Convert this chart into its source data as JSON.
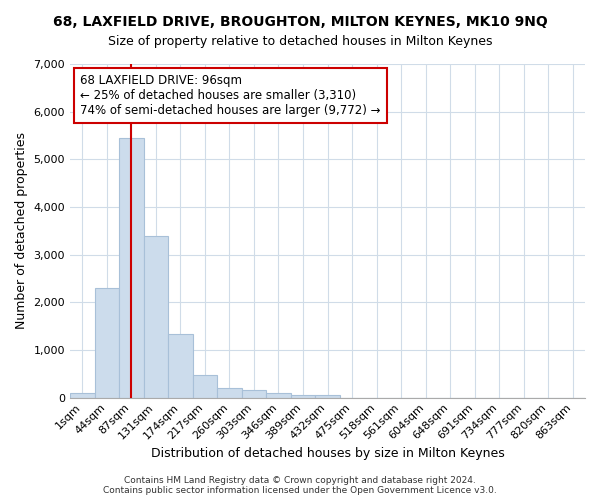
{
  "title_line1": "68, LAXFIELD DRIVE, BROUGHTON, MILTON KEYNES, MK10 9NQ",
  "title_line2": "Size of property relative to detached houses in Milton Keynes",
  "xlabel": "Distribution of detached houses by size in Milton Keynes",
  "ylabel": "Number of detached properties",
  "footnote": "Contains HM Land Registry data © Crown copyright and database right 2024.\nContains public sector information licensed under the Open Government Licence v3.0.",
  "bar_labels": [
    "1sqm",
    "44sqm",
    "87sqm",
    "131sqm",
    "174sqm",
    "217sqm",
    "260sqm",
    "303sqm",
    "346sqm",
    "389sqm",
    "432sqm",
    "475sqm",
    "518sqm",
    "561sqm",
    "604sqm",
    "648sqm",
    "691sqm",
    "734sqm",
    "777sqm",
    "820sqm",
    "863sqm"
  ],
  "bar_heights": [
    100,
    2300,
    5450,
    3400,
    1340,
    470,
    200,
    160,
    90,
    55,
    50,
    0,
    0,
    0,
    0,
    0,
    0,
    0,
    0,
    0,
    0
  ],
  "bar_color": "#ccdcec",
  "bar_edge_color": "#a8c0d8",
  "bar_linewidth": 0.8,
  "vline_x_index": 2,
  "vline_color": "#cc0000",
  "vline_linewidth": 1.5,
  "annotation_text": "68 LAXFIELD DRIVE: 96sqm\n← 25% of detached houses are smaller (3,310)\n74% of semi-detached houses are larger (9,772) →",
  "annotation_box_edge_color": "#cc0000",
  "annotation_box_face_color": "#ffffff",
  "ylim": [
    0,
    7000
  ],
  "yticks": [
    0,
    1000,
    2000,
    3000,
    4000,
    5000,
    6000,
    7000
  ],
  "background_color": "#ffffff",
  "grid_color": "#d0dce8",
  "title1_fontsize": 10,
  "title2_fontsize": 9,
  "xlabel_fontsize": 9,
  "ylabel_fontsize": 9,
  "tick_fontsize": 8,
  "annotation_fontsize": 8.5,
  "footnote_fontsize": 6.5
}
